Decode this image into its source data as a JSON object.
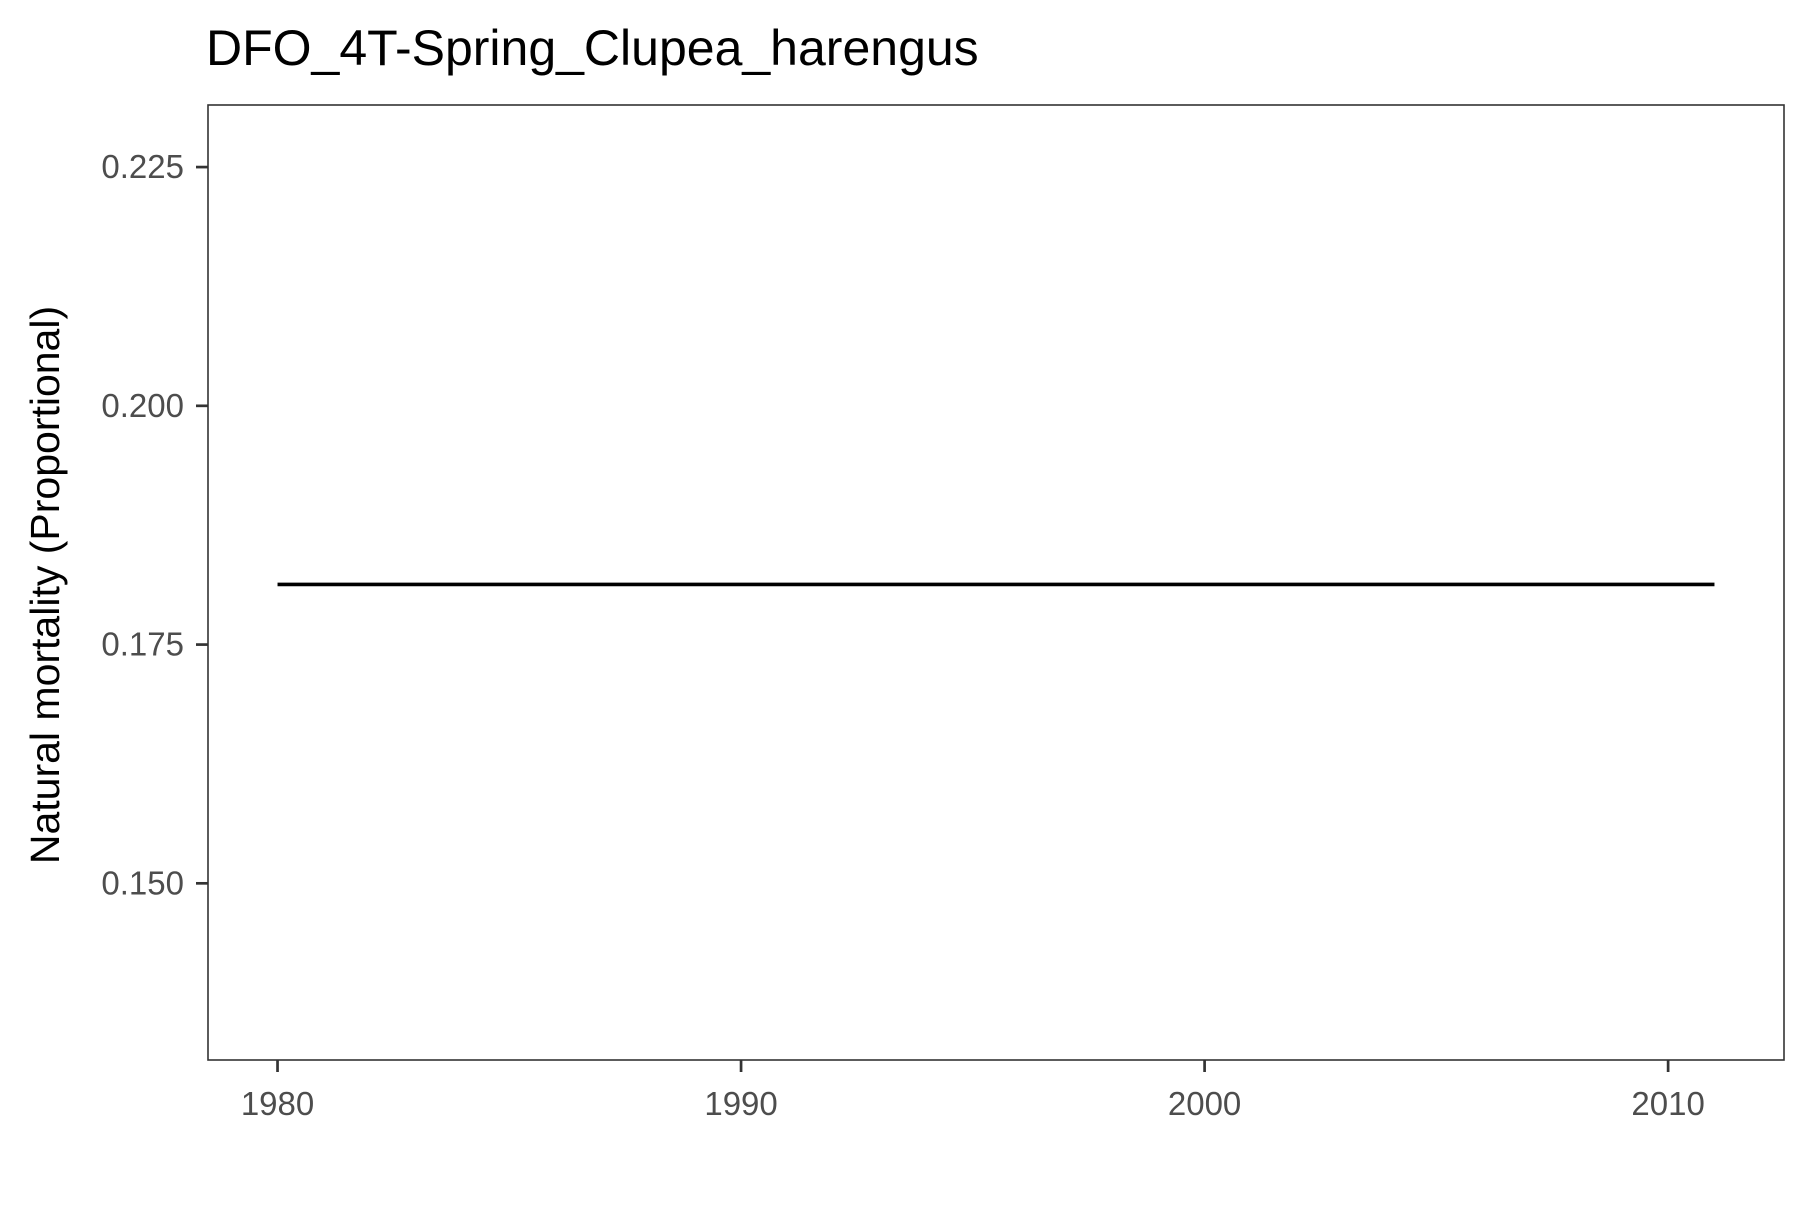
{
  "chart_data": {
    "type": "line",
    "title": "DFO_4T-Spring_Clupea_harengus",
    "xlabel": "",
    "ylabel": "Natural mortality (Proportional)",
    "xlim": [
      1978.5,
      2012.5
    ],
    "ylim": [
      0.1315,
      0.2315
    ],
    "x_ticks": [
      {
        "value": 1980,
        "label": "1980"
      },
      {
        "value": 1990,
        "label": "1990"
      },
      {
        "value": 2000,
        "label": "2000"
      },
      {
        "value": 2010,
        "label": "2010"
      }
    ],
    "y_ticks": [
      {
        "value": 0.15,
        "label": "0.150"
      },
      {
        "value": 0.175,
        "label": "0.175"
      },
      {
        "value": 0.2,
        "label": "0.200"
      },
      {
        "value": 0.225,
        "label": "0.225"
      }
    ],
    "grid": false,
    "legend": "none",
    "series": [
      {
        "color": "#000000",
        "x": [
          1980,
          1981,
          1982,
          1983,
          1984,
          1985,
          1986,
          1987,
          1988,
          1989,
          1990,
          1991,
          1992,
          1993,
          1994,
          1995,
          1996,
          1997,
          1998,
          1999,
          2000,
          2001,
          2002,
          2003,
          2004,
          2005,
          2006,
          2007,
          2008,
          2009,
          2010,
          2011
        ],
        "y": [
          0.1813,
          0.1813,
          0.1813,
          0.1813,
          0.1813,
          0.1813,
          0.1813,
          0.1813,
          0.1813,
          0.1813,
          0.1813,
          0.1813,
          0.1813,
          0.1813,
          0.1813,
          0.1813,
          0.1813,
          0.1813,
          0.1813,
          0.1813,
          0.1813,
          0.1813,
          0.1813,
          0.1813,
          0.1813,
          0.1813,
          0.1813,
          0.1813,
          0.1813,
          0.1813,
          0.1813,
          0.1813
        ]
      }
    ]
  }
}
